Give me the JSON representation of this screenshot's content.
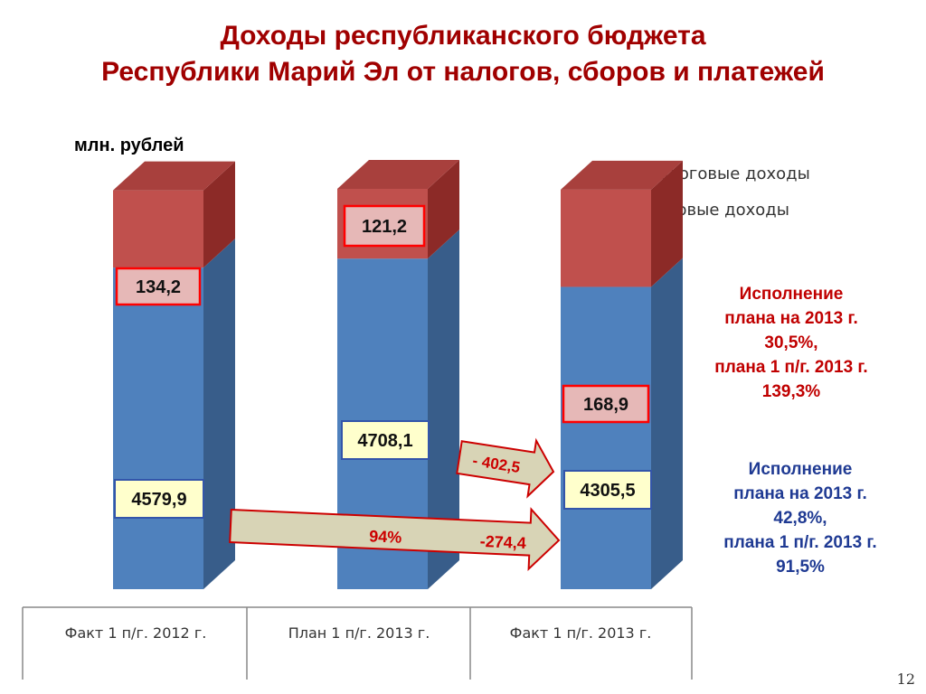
{
  "title": {
    "line1": "Доходы республиканского бюджета",
    "line2": "Республики Марий Эл от налогов, сборов и платежей"
  },
  "unit_label": "млн. рублей",
  "legend": {
    "nontax": "Неналоговые доходы",
    "tax": "Налоговые доходы"
  },
  "notes": {
    "nontax": [
      "Исполнение",
      "плана на 2013 г.",
      "30,5%,",
      "плана 1 п/г. 2013 г.",
      "139,3%"
    ],
    "tax": [
      "Исполнение",
      "плана на 2013 г.",
      "42,8%,",
      "плана 1 п/г. 2013 г.",
      "91,5%"
    ]
  },
  "arrows": {
    "upper_label": "- 402,5",
    "lower_pct": "94%",
    "lower_diff": "-274,4"
  },
  "page_number": "12",
  "colors": {
    "tax_front": "#4f81bd",
    "tax_side": "#385d8a",
    "nontax_front": "#c0504d",
    "nontax_side": "#8c2a27",
    "title": "#a00000",
    "note_red": "#c00000",
    "note_blue": "#1f3a93"
  },
  "chart_data": {
    "type": "bar",
    "stacked": true,
    "categories": [
      "Факт 1 п/г. 2012 г.",
      "План 1 п/г. 2013 г.",
      "Факт 1 п/г. 2013 г."
    ],
    "series": [
      {
        "name": "Налоговые доходы",
        "values": [
          4579.9,
          4708.1,
          4305.5
        ],
        "labels": [
          "4579,9",
          "4708,1",
          "4305,5"
        ]
      },
      {
        "name": "Неналоговые доходы",
        "values": [
          134.2,
          121.2,
          168.9
        ],
        "labels": [
          "134,2",
          "121,2",
          "168,9"
        ]
      }
    ],
    "ylabel": "млн. рублей",
    "legend_position": "top-right",
    "grid": false
  }
}
